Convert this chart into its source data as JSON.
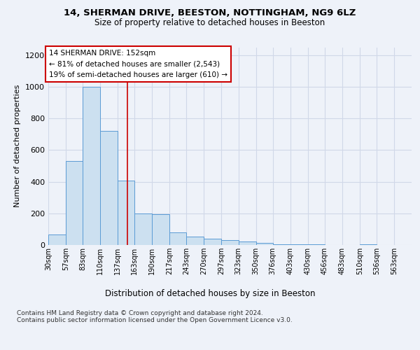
{
  "title": "14, SHERMAN DRIVE, BEESTON, NOTTINGHAM, NG9 6LZ",
  "subtitle": "Size of property relative to detached houses in Beeston",
  "xlabel": "Distribution of detached houses by size in Beeston",
  "ylabel": "Number of detached properties",
  "bar_color": "#cce0f0",
  "bar_edge_color": "#5b9bd5",
  "categories": [
    "30sqm",
    "57sqm",
    "83sqm",
    "110sqm",
    "137sqm",
    "163sqm",
    "190sqm",
    "217sqm",
    "243sqm",
    "270sqm",
    "297sqm",
    "323sqm",
    "350sqm",
    "376sqm",
    "403sqm",
    "430sqm",
    "456sqm",
    "483sqm",
    "510sqm",
    "536sqm",
    "563sqm"
  ],
  "values": [
    65,
    530,
    1000,
    720,
    405,
    200,
    195,
    80,
    55,
    40,
    30,
    20,
    15,
    5,
    5,
    5,
    1,
    1,
    5,
    1,
    1
  ],
  "bin_edges": [
    30,
    57,
    83,
    110,
    137,
    163,
    190,
    217,
    243,
    270,
    297,
    323,
    350,
    376,
    403,
    430,
    456,
    483,
    510,
    536,
    563,
    590
  ],
  "vline_x": 152,
  "vline_color": "#cc0000",
  "annotation_text": "14 SHERMAN DRIVE: 152sqm\n← 81% of detached houses are smaller (2,543)\n19% of semi-detached houses are larger (610) →",
  "annotation_box_color": "#ffffff",
  "annotation_box_edge": "#cc0000",
  "ylim": [
    0,
    1250
  ],
  "yticks": [
    0,
    200,
    400,
    600,
    800,
    1000,
    1200
  ],
  "grid_color": "#d0d8e8",
  "footer": "Contains HM Land Registry data © Crown copyright and database right 2024.\nContains public sector information licensed under the Open Government Licence v3.0.",
  "bg_color": "#eef2f9"
}
